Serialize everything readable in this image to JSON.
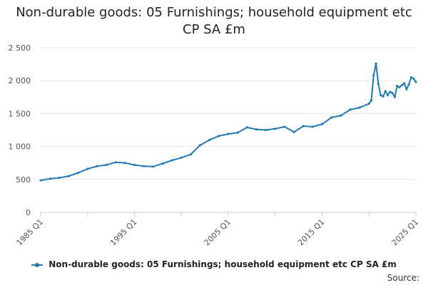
{
  "chart_data": {
    "type": "line",
    "title": "Non-durable goods: 05 Furnishings; household equipment etc CP SA £m",
    "xlabel": "",
    "ylabel": "",
    "x_tick_labels": [
      "1985 Q1",
      "1995 Q1",
      "2005 Q1",
      "2015 Q1",
      "2025 Q1"
    ],
    "y_tick_labels": [
      "0",
      "500",
      "1 000",
      "1 500",
      "2 000",
      "2 500"
    ],
    "ylim": [
      0,
      2500
    ],
    "grid": true,
    "legend_position": "bottom",
    "color": "#1f7ab5",
    "series": [
      {
        "name": "Non-durable goods: 05 Furnishings; household equipment etc CP SA £m",
        "points": [
          [
            "1985 Q1",
            485
          ],
          [
            "1986 Q1",
            510
          ],
          [
            "1987 Q1",
            525
          ],
          [
            "1988 Q1",
            550
          ],
          [
            "1989 Q1",
            600
          ],
          [
            "1990 Q1",
            660
          ],
          [
            "1991 Q1",
            700
          ],
          [
            "1992 Q1",
            720
          ],
          [
            "1993 Q1",
            760
          ],
          [
            "1994 Q1",
            750
          ],
          [
            "1995 Q1",
            720
          ],
          [
            "1996 Q1",
            700
          ],
          [
            "1997 Q1",
            695
          ],
          [
            "1998 Q1",
            740
          ],
          [
            "1999 Q1",
            790
          ],
          [
            "2000 Q1",
            830
          ],
          [
            "2001 Q1",
            880
          ],
          [
            "2002 Q1",
            1020
          ],
          [
            "2003 Q1",
            1100
          ],
          [
            "2004 Q1",
            1160
          ],
          [
            "2005 Q1",
            1190
          ],
          [
            "2006 Q1",
            1210
          ],
          [
            "2007 Q1",
            1290
          ],
          [
            "2008 Q1",
            1260
          ],
          [
            "2009 Q1",
            1250
          ],
          [
            "2010 Q1",
            1270
          ],
          [
            "2011 Q1",
            1300
          ],
          [
            "2012 Q1",
            1220
          ],
          [
            "2013 Q1",
            1310
          ],
          [
            "2014 Q1",
            1300
          ],
          [
            "2015 Q1",
            1340
          ],
          [
            "2016 Q1",
            1440
          ],
          [
            "2017 Q1",
            1470
          ],
          [
            "2018 Q1",
            1560
          ],
          [
            "2019 Q1",
            1590
          ],
          [
            "2020 Q1",
            1650
          ],
          [
            "2020 Q2",
            1700
          ],
          [
            "2020 Q3",
            2080
          ],
          [
            "2020 Q4",
            2260
          ],
          [
            "2021 Q1",
            1950
          ],
          [
            "2021 Q2",
            1780
          ],
          [
            "2021 Q3",
            1760
          ],
          [
            "2021 Q4",
            1840
          ],
          [
            "2022 Q1",
            1780
          ],
          [
            "2022 Q2",
            1830
          ],
          [
            "2022 Q3",
            1810
          ],
          [
            "2022 Q4",
            1750
          ],
          [
            "2023 Q1",
            1920
          ],
          [
            "2023 Q2",
            1900
          ],
          [
            "2023 Q3",
            1930
          ],
          [
            "2023 Q4",
            1960
          ],
          [
            "2024 Q1",
            1870
          ],
          [
            "2024 Q2",
            1940
          ],
          [
            "2024 Q3",
            2050
          ],
          [
            "2024 Q4",
            2030
          ],
          [
            "2025 Q1",
            1980
          ]
        ]
      }
    ],
    "source_label": "Source:"
  }
}
